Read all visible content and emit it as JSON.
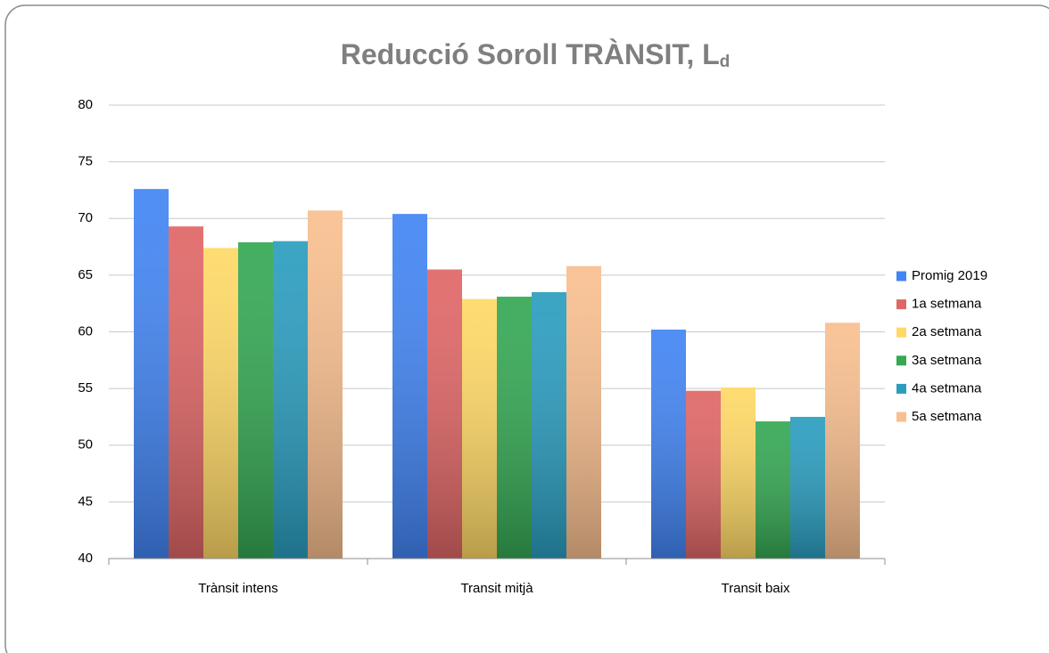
{
  "chart_data": {
    "type": "bar",
    "title": "Reducció Soroll TRÀNSIT, L",
    "title_subscript": "d",
    "categories": [
      "Trànsit intens",
      "Transit mitjà",
      "Transit baix"
    ],
    "series": [
      {
        "name": "Promig 2019",
        "color": "#4285f4",
        "values": [
          72.6,
          70.4,
          60.2
        ]
      },
      {
        "name": "1a setmana",
        "color": "#e06666",
        "values": [
          69.3,
          65.5,
          54.8
        ]
      },
      {
        "name": "2a setmana",
        "color": "#ffd966",
        "values": [
          67.4,
          62.9,
          55.1
        ]
      },
      {
        "name": "3a setmana",
        "color": "#34a853",
        "values": [
          67.9,
          63.1,
          52.1
        ]
      },
      {
        "name": "4a setmana",
        "color": "#2a9dbf",
        "values": [
          68.0,
          63.5,
          52.5
        ]
      },
      {
        "name": "5a setmana",
        "color": "#f9bf8f",
        "values": [
          70.7,
          65.8,
          60.8
        ]
      }
    ],
    "ylim": [
      40,
      80
    ],
    "yticks": [
      40,
      45,
      50,
      55,
      60,
      65,
      70,
      75,
      80
    ],
    "grid": true,
    "legend": "right"
  }
}
